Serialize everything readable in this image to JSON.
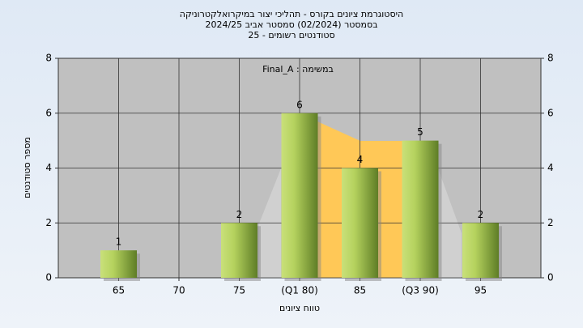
{
  "chart_data": {
    "type": "bar",
    "title": "היסטוגרמת ציונים בקורס - תהליכי יצור במיקרואלקטרוניקה",
    "subtitle": "בסמסטר  (02/2024)  סמסטר אביב 2024/25",
    "subtitle2": "סטודנטים רשומים - 25",
    "annotation": "במשימה : Final_A",
    "x_label": "טווח ציונים",
    "y_label": "מספר סטודנטים",
    "categories": [
      "65",
      "70",
      "75",
      "(Q1 80)",
      "85",
      "(Q3 90)",
      "95"
    ],
    "values": [
      1,
      0,
      2,
      6,
      4,
      5,
      2
    ],
    "color": "#8db33f",
    "ylim": [
      0,
      8
    ],
    "yticks": [
      0,
      2,
      4,
      6,
      8
    ],
    "y2lim": [
      0,
      8
    ],
    "y2ticks": [
      0,
      2,
      4,
      6,
      8
    ],
    "grid": true
  }
}
